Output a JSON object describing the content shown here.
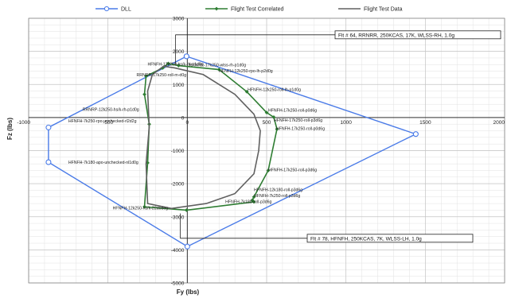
{
  "chart_data": {
    "type": "scatter",
    "xlabel": "Fy (lbs)",
    "ylabel": "Fz (lbs)",
    "xlim": [
      -1000,
      2000
    ],
    "ylim": [
      -5000,
      3000
    ],
    "x_ticks": [
      -1000,
      -500,
      0,
      500,
      1000,
      1500,
      2000
    ],
    "y_ticks": [
      -5000,
      -4000,
      -3000,
      -2000,
      -1000,
      0,
      1000,
      2000,
      3000
    ],
    "x_tick_labels": [
      "-1000",
      "-500",
      "0",
      "500",
      "1000",
      "1500",
      "2000"
    ],
    "y_tick_labels": [
      "-5000",
      "-4000",
      "-3000",
      "-2000",
      "-1000",
      "0",
      "1000",
      "2000",
      "3000"
    ],
    "grid": true,
    "legend_position": "top",
    "series": [
      {
        "name": "DLL",
        "color": "#4a7be8",
        "marker": "open-circle",
        "x": [
          -5,
          1440,
          0,
          -875,
          -875,
          -5
        ],
        "y": [
          1850,
          -500,
          -3900,
          -1350,
          -300,
          1850
        ]
      },
      {
        "name": "Flight Test Correlated",
        "color": "#2e7d32",
        "marker": "filled-diamond",
        "x": [
          -120,
          -55,
          200,
          375,
          500,
          545,
          565,
          510,
          420,
          410,
          420,
          -5,
          -270,
          -250,
          -240,
          -270,
          -260,
          -155,
          -120
        ],
        "y": [
          1630,
          1570,
          1450,
          780,
          150,
          10,
          -350,
          -1600,
          -2400,
          -2500,
          -2550,
          -2800,
          -2700,
          -1370,
          -200,
          700,
          1250,
          1500,
          1630
        ]
      },
      {
        "name": "Flight Test Data",
        "color": "#606060",
        "marker": "none",
        "x": [
          -150,
          -80,
          100,
          300,
          420,
          460,
          450,
          420,
          300,
          120,
          -100,
          -250,
          -260,
          -240,
          -250,
          -220,
          -150
        ],
        "y": [
          1550,
          1500,
          1300,
          700,
          100,
          -400,
          -1000,
          -1700,
          -2300,
          -2600,
          -2750,
          -2600,
          -1400,
          -300,
          800,
          1300,
          1550
        ]
      }
    ],
    "point_labels": [
      {
        "text": "RRNRR-17k250-wlss-rh-p1d0g",
        "x": 10,
        "y": 1550
      },
      {
        "text": "HFNFH-12k250-hs/k-rh-p1d0g",
        "x": -250,
        "y": 1570
      },
      {
        "text": "RRNRR-17k250-roll-m-d0g",
        "x": -320,
        "y": 1250
      },
      {
        "text": "HFNFH-12k250-rpo-lh-p2d0g",
        "x": 200,
        "y": 1370
      },
      {
        "text": "HFNFH-12k250-roll-lh-p1d0g",
        "x": 380,
        "y": 800
      },
      {
        "text": "RRNRP-12k250-hs/k-rh-p1d0g",
        "x": -660,
        "y": 200
      },
      {
        "text": "HFNFH-17k250-roll-p0d6g",
        "x": 510,
        "y": 180
      },
      {
        "text": "HFNFH-7k250-rpo-unchecked-rl2d2g",
        "x": -750,
        "y": -150
      },
      {
        "text": "HFNFH-17k250-roll-p3d6g",
        "x": 545,
        "y": -120
      },
      {
        "text": "HFNFH-17k250-roll-p0d6g",
        "x": 560,
        "y": -380
      },
      {
        "text": "HFNFH-7k180-apo-unchecked-nl1d0g",
        "x": -750,
        "y": -1400
      },
      {
        "text": "HFNFH-17k250-roll-p3d6g",
        "x": 510,
        "y": -1630
      },
      {
        "text": "HFNFH-12k180-roll-p3d6g",
        "x": 420,
        "y": -2230
      },
      {
        "text": "HFNFH-7k250-roll-p3d6g",
        "x": 420,
        "y": -2400
      },
      {
        "text": "HFNFH-7k180-roll-p3d6g",
        "x": 240,
        "y": -2580
      },
      {
        "text": "HFNFH-12k250-hs/k-22d0deg",
        "x": -470,
        "y": -2780
      }
    ],
    "annotations": [
      {
        "text": "Flt # 64, RRNRR, 250KCAS, 17K, WLSS-RH, 1.0g",
        "x_from": -75,
        "y_from": 1600,
        "y_to": 2500
      },
      {
        "text": "Flt # 78, HFNFH, 250KCAS, 7K, WLSS-LH, 1.0g",
        "x_from": -45,
        "y_from": -2900,
        "y_to": -3650
      }
    ]
  }
}
